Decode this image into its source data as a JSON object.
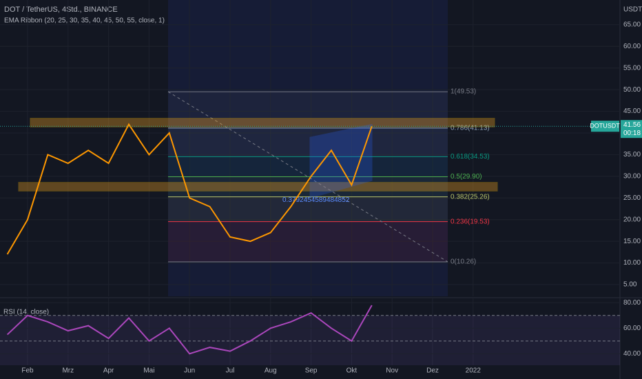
{
  "chart_data": [
    {
      "type": "line",
      "title": "DOT / TetherUS, 4Std., BINANCE",
      "subtitle": "EMA Ribbon (20, 25, 30, 35, 40, 45, 50, 55, close, 1)",
      "y_unit": "USDT",
      "countdown": "00:18",
      "annotation": "0.3792454589484852",
      "categories": [
        null,
        "Feb",
        null,
        "Mrz",
        null,
        "Apr",
        null,
        "Mai",
        null,
        "Jun",
        null,
        "Jul",
        null,
        "Aug",
        null,
        "Sep",
        null,
        "Okt",
        null,
        "Nov",
        null,
        "Dez",
        null,
        "2022",
        null,
        null,
        null,
        null,
        null,
        null,
        null
      ],
      "series": [
        {
          "name": "DOTUSDT",
          "color": "#ff9800",
          "values": [
            12,
            20,
            35,
            33,
            36,
            33,
            42,
            35,
            40,
            25,
            23,
            16,
            15,
            17,
            23,
            30,
            36,
            28,
            41.56,
            null,
            null,
            null,
            null,
            null,
            null,
            null,
            null,
            null,
            null,
            null,
            null
          ]
        }
      ],
      "ylim": [
        2.3,
        70.7
      ],
      "yticks": [
        {
          "value": 5,
          "label": "5.00"
        },
        {
          "value": 10,
          "label": "10.00"
        },
        {
          "value": 15,
          "label": "15.00"
        },
        {
          "value": 20,
          "label": "20.00"
        },
        {
          "value": 25,
          "label": "25.00"
        },
        {
          "value": 30,
          "label": "30.00"
        },
        {
          "value": 35,
          "label": "35.00"
        },
        {
          "value": 40,
          "label": "40.00"
        },
        {
          "value": 45,
          "label": "45.00"
        },
        {
          "value": 50,
          "label": "50.00"
        },
        {
          "value": 55,
          "label": "55.00"
        },
        {
          "value": 60,
          "label": "60.00"
        },
        {
          "value": 65,
          "label": "65.00"
        }
      ],
      "fib_levels": [
        {
          "label": "1(49.53)",
          "value": 49.53,
          "color": "#787b86"
        },
        {
          "label": "0.786(41.13)",
          "value": 41.13,
          "color": "#8fa2b8"
        },
        {
          "label": "0.618(34.53)",
          "value": 34.53,
          "color": "#089981"
        },
        {
          "label": "0.5(29.90)",
          "value": 29.9,
          "color": "#4caf50"
        },
        {
          "label": "0.382(25.26)",
          "value": 25.26,
          "color": "#b8c46a"
        },
        {
          "label": "0.236(19.53)",
          "value": 19.53,
          "color": "#f23645"
        },
        {
          "label": "0(10.26)",
          "value": 10.26,
          "color": "#787b86"
        }
      ],
      "grid": true
    },
    {
      "type": "line",
      "title": "RSI (14, close)",
      "series": [
        {
          "color": "#ab47bc",
          "values": [
            55,
            70,
            65,
            58,
            62,
            52,
            68,
            50,
            60,
            40,
            45,
            42,
            50,
            60,
            65,
            72,
            60,
            50,
            78,
            null,
            null,
            null,
            null,
            null,
            null,
            null,
            null,
            null,
            null,
            null,
            null
          ]
        }
      ],
      "ylim": [
        31,
        83.4
      ],
      "yticks": [
        {
          "value": 40,
          "label": "40.00"
        },
        {
          "value": 60,
          "label": "60.00"
        },
        {
          "value": 80,
          "label": "80.00"
        }
      ],
      "levels": [
        70,
        50
      ],
      "grid": true
    }
  ]
}
